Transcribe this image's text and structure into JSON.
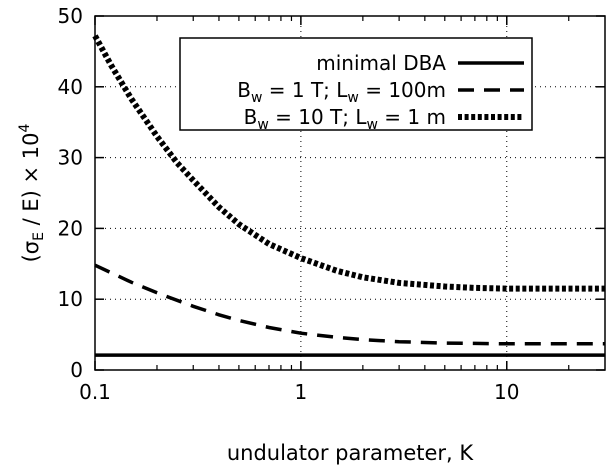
{
  "chart_data": {
    "type": "line",
    "xlabel": "undulator parameter, K",
    "ylabel": {
      "prefix": "(σ",
      "sub": "E",
      "middle": " / E) × 10",
      "sup": "4"
    },
    "x_scale": "log",
    "xlim": [
      0.1,
      30
    ],
    "ylim": [
      0,
      50
    ],
    "grid": true,
    "legend_position": "top-right",
    "x_ticks": [
      {
        "value": 0.1,
        "label": "0.1"
      },
      {
        "value": 1,
        "label": "1"
      },
      {
        "value": 10,
        "label": "10"
      }
    ],
    "y_ticks": [
      {
        "value": 0,
        "label": "0"
      },
      {
        "value": 10,
        "label": "10"
      },
      {
        "value": 20,
        "label": "20"
      },
      {
        "value": 30,
        "label": "30"
      },
      {
        "value": 40,
        "label": "40"
      },
      {
        "value": 50,
        "label": "50"
      }
    ],
    "series": [
      {
        "name": "minimal DBA",
        "legend": [
          {
            "t": "minimal DBA"
          }
        ],
        "style": "solid",
        "x": [
          0.1,
          30
        ],
        "y": [
          2.1,
          2.1
        ]
      },
      {
        "name": "B_w = 1 T; L_w = 100m",
        "legend": [
          {
            "t": "B"
          },
          {
            "t": "w",
            "sub": true
          },
          {
            "t": " = 1 T; L"
          },
          {
            "t": "w",
            "sub": true
          },
          {
            "t": " = 100m"
          }
        ],
        "style": "dashed",
        "x": [
          0.1,
          0.15,
          0.2,
          0.3,
          0.4,
          0.5,
          0.7,
          1.0,
          1.5,
          2,
          3,
          5,
          7,
          10,
          20,
          30
        ],
        "y": [
          14.8,
          12.4,
          10.9,
          9.0,
          7.8,
          7.0,
          6.0,
          5.2,
          4.6,
          4.3,
          4.0,
          3.8,
          3.75,
          3.7,
          3.7,
          3.7
        ]
      },
      {
        "name": "B_w = 10 T; L_w = 1 m",
        "legend": [
          {
            "t": "B"
          },
          {
            "t": "w",
            "sub": true
          },
          {
            "t": " = 10 T; L"
          },
          {
            "t": "w",
            "sub": true
          },
          {
            "t": " = 1 m"
          }
        ],
        "style": "dotted",
        "x": [
          0.1,
          0.12,
          0.15,
          0.2,
          0.25,
          0.3,
          0.4,
          0.5,
          0.7,
          1.0,
          1.5,
          2,
          3,
          5,
          7,
          10,
          20,
          30
        ],
        "y": [
          47.2,
          43.0,
          38.3,
          33.0,
          29.3,
          26.8,
          23.0,
          20.6,
          17.8,
          15.8,
          14.0,
          13.1,
          12.3,
          11.8,
          11.6,
          11.5,
          11.5,
          11.5
        ]
      }
    ]
  }
}
